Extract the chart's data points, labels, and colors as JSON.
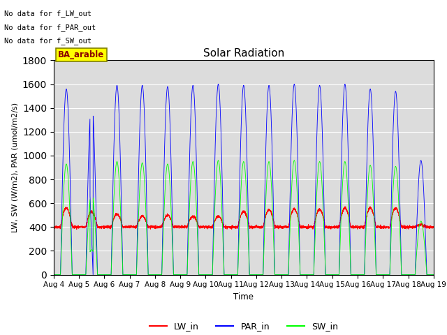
{
  "title": "Solar Radiation",
  "ylabel": "LW, SW (W/m2), PAR (umol/m2/s)",
  "xlabel": "Time",
  "ylim": [
    0,
    1800
  ],
  "background_color": "#dcdcdc",
  "annotations": [
    "No data for f_LW_out",
    "No data for f_PAR_out",
    "No data for f_SW_out"
  ],
  "site_label": "BA_arable",
  "xtick_labels": [
    "Aug 4",
    "Aug 5",
    "Aug 6",
    "Aug 7",
    "Aug 8",
    "Aug 9",
    "Aug 10",
    "Aug 11",
    "Aug 12",
    "Aug 13",
    "Aug 14",
    "Aug 15",
    "Aug 16",
    "Aug 17",
    "Aug 18",
    "Aug 19"
  ],
  "legend_entries": [
    {
      "label": "LW_in",
      "color": "red"
    },
    {
      "label": "PAR_in",
      "color": "blue"
    },
    {
      "label": "SW_in",
      "color": "lime"
    }
  ],
  "lw_in_base": 400,
  "par_in_peak": 1600,
  "sw_in_peak": 950,
  "n_days": 15,
  "pts_per_day": 288
}
